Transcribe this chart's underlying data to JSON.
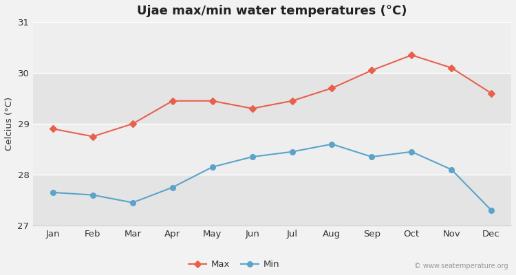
{
  "title": "Ujae max/min water temperatures (°C)",
  "ylabel": "Celcius (°C)",
  "months": [
    "Jan",
    "Feb",
    "Mar",
    "Apr",
    "May",
    "Jun",
    "Jul",
    "Aug",
    "Sep",
    "Oct",
    "Nov",
    "Dec"
  ],
  "max_temps": [
    28.9,
    28.75,
    29.0,
    29.45,
    29.45,
    29.3,
    29.45,
    29.7,
    30.05,
    30.35,
    30.1,
    29.6
  ],
  "min_temps": [
    27.65,
    27.6,
    27.45,
    27.75,
    28.15,
    28.35,
    28.45,
    28.6,
    28.35,
    28.45,
    28.1,
    27.3
  ],
  "max_color": "#e8604c",
  "min_color": "#5ba3c9",
  "bg_color": "#f2f2f2",
  "band_light": "#eeeeee",
  "band_dark": "#e4e4e4",
  "grid_color": "#ffffff",
  "ylim": [
    27.0,
    31.0
  ],
  "yticks": [
    27,
    28,
    29,
    30,
    31
  ],
  "legend_labels": [
    "Max",
    "Min"
  ],
  "watermark": "© www.seatemperature.org",
  "title_fontsize": 13,
  "label_fontsize": 9.5,
  "tick_fontsize": 9.5,
  "legend_fontsize": 9.5
}
